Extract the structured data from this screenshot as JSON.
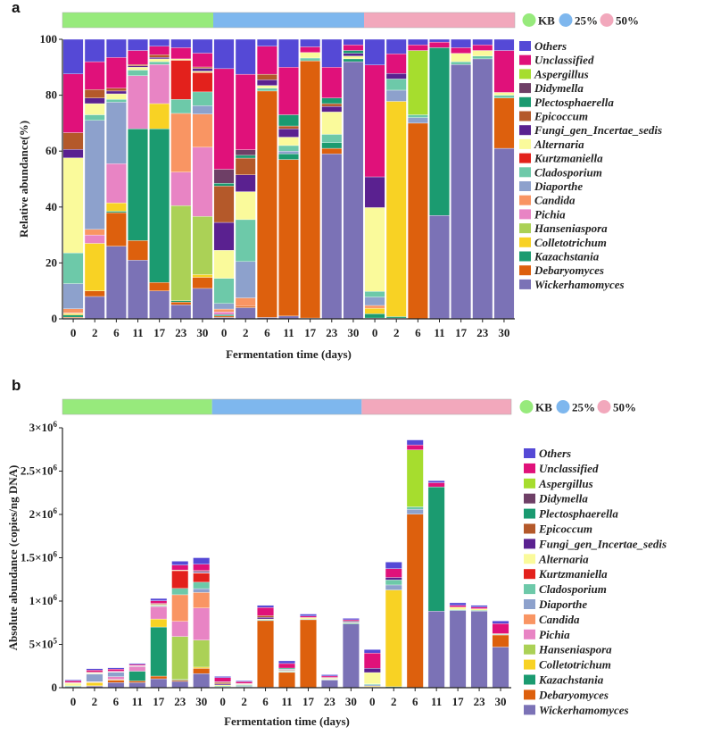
{
  "species": [
    "Others",
    "Unclassified",
    "Aspergillus",
    "Didymella",
    "Plectosphaerella",
    "Epicoccum",
    "Fungi_gen_Incertae_sedis",
    "Alternaria",
    "Kurtzmaniella",
    "Cladosporium",
    "Diaporthe",
    "Candida",
    "Pichia",
    "Hanseniaspora",
    "Colletotrichum",
    "Kazachstania",
    "Debaryomyces",
    "Wickerhamomyces"
  ],
  "colors": {
    "Wickerhamomyces": "#7b72b6",
    "Debaryomyces": "#dd600d",
    "Kazachstania": "#1b9b70",
    "Colletotrichum": "#f8d224",
    "Hanseniaspora": "#abd156",
    "Pichia": "#e884c4",
    "Candida": "#f99563",
    "Diaporthe": "#8da1cc",
    "Cladosporium": "#6dc9a9",
    "Kurtzmaniella": "#e3211c",
    "Alternaria": "#fafa9b",
    "Fungi_gen_Incertae_sedis": "#5a2190",
    "Epicoccum": "#b4592a",
    "Plectosphaerella": "#1a9a70",
    "Didymella": "#6e3f66",
    "Aspergillus": "#a6dd2e",
    "Unclassified": "#e0117a",
    "Others": "#5549d6"
  },
  "groups": [
    {
      "name": "KB",
      "color": "#97ea7c"
    },
    {
      "name": "25%",
      "color": "#7eb7ee"
    },
    {
      "name": "50%",
      "color": "#f2a8bc"
    }
  ],
  "panel_a": {
    "label": "a",
    "title": "",
    "xlabel": "Fermentation time (days)",
    "ylabel": "Relative abundance(%)",
    "ylim": [
      0,
      100
    ],
    "yticks": [
      "0",
      "20",
      "40",
      "60",
      "80",
      "100"
    ],
    "chart_data": {
      "type": "stacked-bar",
      "categories": [
        "0",
        "2",
        "6",
        "11",
        "17",
        "23",
        "30",
        "0",
        "2",
        "6",
        "11",
        "17",
        "23",
        "30",
        "0",
        "2",
        "6",
        "11",
        "17",
        "23",
        "30"
      ],
      "bars": [
        {
          "Wickerhamomyces": 0.3,
          "Debaryomyces": 0.3,
          "Kazachstania": 0.8,
          "Colletotrichum": 0.5,
          "Hanseniaspora": 0.1,
          "Pichia": 0.1,
          "Candida": 1.5,
          "Diaporthe": 9,
          "Cladosporium": 11,
          "Alternaria": 34,
          "Fungi_gen_Incertae_sedis": 3,
          "Epicoccum": 6,
          "Unclassified": 21,
          "Others": 12.4
        },
        {
          "Wickerhamomyces": 8,
          "Debaryomyces": 2,
          "Colletotrichum": 17,
          "Pichia": 3,
          "Candida": 2,
          "Diaporthe": 39,
          "Cladosporium": 2,
          "Alternaria": 4,
          "Fungi_gen_Incertae_sedis": 2,
          "Epicoccum": 3,
          "Unclassified": 10,
          "Others": 8
        },
        {
          "Wickerhamomyces": 26,
          "Debaryomyces": 12,
          "Kazachstania": 0.5,
          "Colletotrichum": 3,
          "Pichia": 14,
          "Diaporthe": 22,
          "Cladosporium": 1,
          "Alternaria": 2,
          "Fungi_gen_Incertae_sedis": 1,
          "Epicoccum": 1,
          "Unclassified": 11,
          "Others": 6.5
        },
        {
          "Wickerhamomyces": 21,
          "Debaryomyces": 7,
          "Kazachstania": 40,
          "Pichia": 19,
          "Cladosporium": 2,
          "Alternaria": 1,
          "Fungi_gen_Incertae_sedis": 0.5,
          "Epicoccum": 0.5,
          "Unclassified": 5,
          "Others": 4
        },
        {
          "Wickerhamomyces": 10,
          "Debaryomyces": 3,
          "Kazachstania": 55,
          "Colletotrichum": 9,
          "Pichia": 14,
          "Cladosporium": 1,
          "Alternaria": 1,
          "Fungi_gen_Incertae_sedis": 0.5,
          "Epicoccum": 1,
          "Unclassified": 3,
          "Others": 2.5
        },
        {
          "Wickerhamomyces": 5,
          "Debaryomyces": 1,
          "Kazachstania": 0.5,
          "Hanseniaspora": 34,
          "Pichia": 12,
          "Candida": 21,
          "Cladosporium": 5,
          "Kurtzmaniella": 14,
          "Alternaria": 0.5,
          "Unclassified": 4,
          "Others": 3
        },
        {
          "Wickerhamomyces": 11,
          "Debaryomyces": 4,
          "Colletotrichum": 1,
          "Hanseniaspora": 21,
          "Pichia": 25,
          "Candida": 12,
          "Diaporthe": 3,
          "Cladosporium": 5,
          "Kurtzmaniella": 7,
          "Alternaria": 0.5,
          "Fungi_gen_Incertae_sedis": 1,
          "Epicoccum": 0.5,
          "Unclassified": 5,
          "Others": 5
        },
        {
          "Wickerhamomyces": 0.5,
          "Debaryomyces": 0.5,
          "Kazachstania": 0.5,
          "Pichia": 1,
          "Candida": 1,
          "Diaporthe": 2,
          "Cladosporium": 9,
          "Alternaria": 10,
          "Fungi_gen_Incertae_sedis": 10,
          "Epicoccum": 13,
          "Plectosphaerella": 1,
          "Didymella": 5,
          "Unclassified": 36,
          "Others": 10.5
        },
        {
          "Wickerhamomyces": 4,
          "Debaryomyces": 0.5,
          "Candida": 3,
          "Diaporthe": 13,
          "Cladosporium": 15,
          "Alternaria": 10,
          "Fungi_gen_Incertae_sedis": 6,
          "Epicoccum": 6,
          "Plectosphaerella": 1,
          "Didymella": 2,
          "Unclassified": 27,
          "Others": 12.5
        },
        {
          "Wickerhamomyces": 0.5,
          "Debaryomyces": 81,
          "Cladosporium": 1,
          "Alternaria": 1,
          "Fungi_gen_Incertae_sedis": 2,
          "Epicoccum": 2,
          "Unclassified": 10,
          "Others": 2.5
        },
        {
          "Wickerhamomyces": 1,
          "Debaryomyces": 56,
          "Kazachstania": 2,
          "Diaporthe": 1,
          "Cladosporium": 2,
          "Alternaria": 3,
          "Fungi_gen_Incertae_sedis": 3,
          "Epicoccum": 1,
          "Plectosphaerella": 4,
          "Unclassified": 17,
          "Others": 10
        },
        {
          "Wickerhamomyces": 0.3,
          "Debaryomyces": 92,
          "Cladosporium": 1,
          "Alternaria": 2,
          "Unclassified": 2,
          "Others": 2.7
        },
        {
          "Wickerhamomyces": 59,
          "Debaryomyces": 2,
          "Kazachstania": 2,
          "Cladosporium": 3,
          "Alternaria": 8,
          "Fungi_gen_Incertae_sedis": 2,
          "Epicoccum": 1,
          "Plectosphaerella": 2,
          "Unclassified": 11,
          "Others": 10
        },
        {
          "Wickerhamomyces": 92,
          "Kazachstania": 1,
          "Alternaria": 1,
          "Fungi_gen_Incertae_sedis": 1,
          "Plectosphaerella": 1,
          "Unclassified": 2,
          "Others": 2
        },
        {
          "Wickerhamomyces": 0.3,
          "Kazachstania": 1.5,
          "Colletotrichum": 2,
          "Candida": 1,
          "Diaporthe": 3,
          "Cladosporium": 2,
          "Alternaria": 30,
          "Fungi_gen_Incertae_sedis": 11,
          "Unclassified": 40,
          "Others": 9.2
        },
        {
          "Wickerhamomyces": 0.3,
          "Kazachstania": 0.5,
          "Colletotrichum": 77,
          "Diaporthe": 4,
          "Cladosporium": 4,
          "Fungi_gen_Incertae_sedis": 2,
          "Unclassified": 7,
          "Others": 5.2
        },
        {
          "Debaryomyces": 70,
          "Diaporthe": 2,
          "Cladosporium": 1,
          "Aspergillus": 23,
          "Unclassified": 2,
          "Others": 2
        },
        {
          "Wickerhamomyces": 37,
          "Kazachstania": 60,
          "Unclassified": 2,
          "Others": 1
        },
        {
          "Wickerhamomyces": 91,
          "Cladosporium": 1,
          "Alternaria": 3,
          "Unclassified": 2,
          "Others": 3
        },
        {
          "Wickerhamomyces": 93,
          "Cladosporium": 1,
          "Alternaria": 2,
          "Unclassified": 2,
          "Others": 2
        },
        {
          "Wickerhamomyces": 61,
          "Debaryomyces": 18,
          "Cladosporium": 1,
          "Alternaria": 1,
          "Unclassified": 15,
          "Others": 4
        }
      ]
    }
  },
  "panel_b": {
    "label": "b",
    "title": "",
    "xlabel": "Fermentation time (days)",
    "ylabel": "Absolute abundance (copies/ng DNA)",
    "ylim": [
      0,
      3000000
    ],
    "yticks": [
      {
        "base": "0",
        "exp": ""
      },
      {
        "base": "5×10",
        "exp": "5"
      },
      {
        "base": "1×10",
        "exp": "6"
      },
      {
        "base": "1.5×10",
        "exp": "6"
      },
      {
        "base": "2×10",
        "exp": "6"
      },
      {
        "base": "2.5×10",
        "exp": "6"
      },
      {
        "base": "3×10",
        "exp": "6"
      }
    ],
    "chart_data": {
      "type": "stacked-bar",
      "categories": [
        "0",
        "2",
        "6",
        "11",
        "17",
        "23",
        "30",
        "0",
        "2",
        "6",
        "11",
        "17",
        "23",
        "30",
        "0",
        "2",
        "6",
        "11",
        "17",
        "23",
        "30"
      ],
      "totals": [
        90000,
        220000,
        230000,
        280000,
        1030000,
        1460000,
        1500000,
        130000,
        80000,
        950000,
        310000,
        850000,
        150000,
        800000,
        440000,
        1450000,
        2860000,
        2390000,
        980000,
        950000,
        770000
      ],
      "note": "Segment sizes follow panel a relative proportions scaled by totals"
    }
  }
}
